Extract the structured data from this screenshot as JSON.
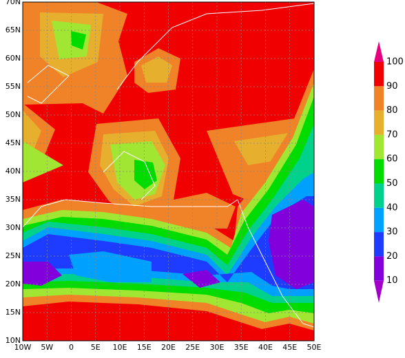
{
  "map": {
    "x_labels": [
      "10W",
      "5W",
      "0",
      "5E",
      "10E",
      "15E",
      "20E",
      "25E",
      "30E",
      "35E",
      "40E",
      "45E",
      "50E"
    ],
    "y_labels": [
      "10N",
      "15N",
      "20N",
      "25N",
      "30N",
      "35N",
      "40N",
      "45N",
      "50N",
      "55N",
      "60N",
      "65N",
      "70N"
    ],
    "legend_labels": [
      100,
      90,
      80,
      70,
      60,
      50,
      40,
      30,
      20,
      10
    ]
  }
}
